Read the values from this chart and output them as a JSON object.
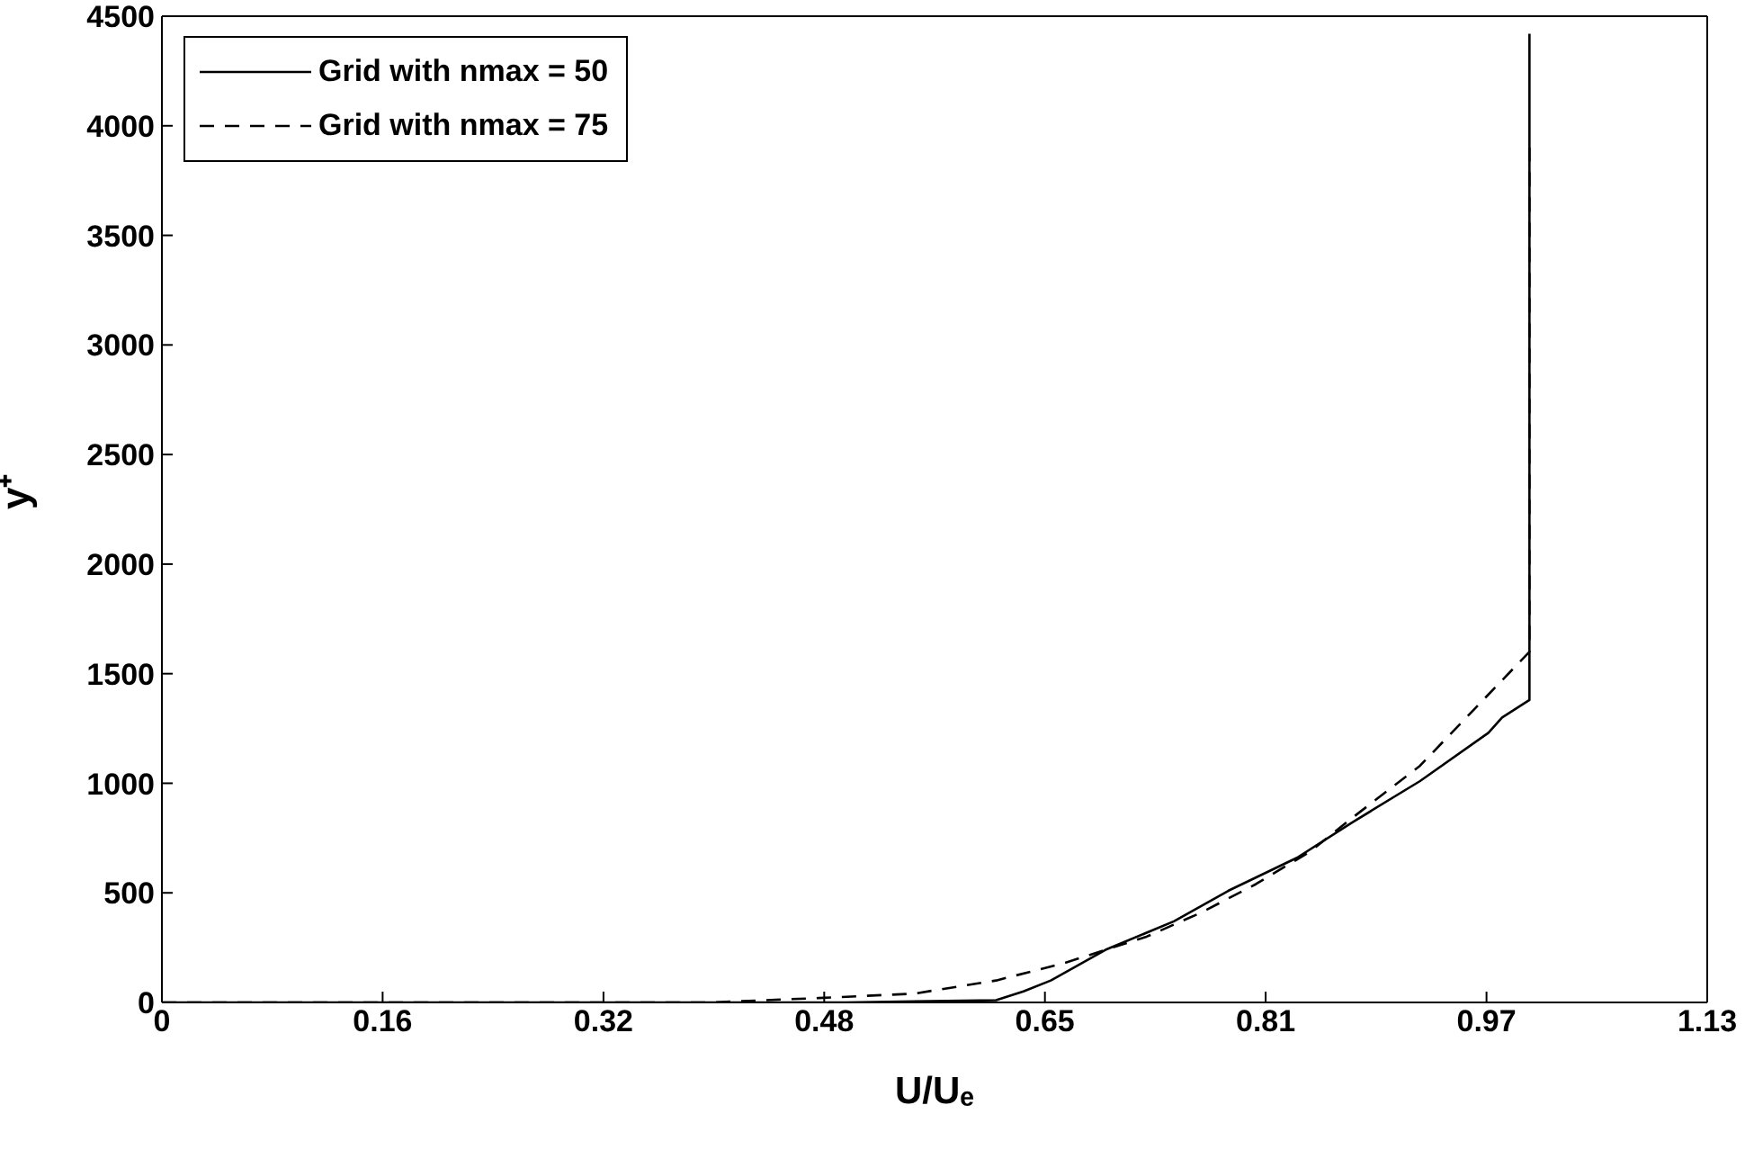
{
  "chart_data": {
    "type": "line",
    "xlabel": "U/Uₑ",
    "ylabel": "y⁺",
    "xlim": [
      0,
      1.13
    ],
    "ylim": [
      0,
      4500
    ],
    "xticks": [
      0,
      {
        "value": 0.1614,
        "label": "0.16"
      },
      {
        "value": 0.3229,
        "label": "0.32"
      },
      {
        "value": 0.4843,
        "label": "0.48"
      },
      {
        "value": 0.6457,
        "label": "0.65"
      },
      {
        "value": 0.8071,
        "label": "0.81"
      },
      {
        "value": 0.9686,
        "label": "0.97"
      },
      1.13
    ],
    "yticks": [
      0,
      500,
      1000,
      1500,
      2000,
      2500,
      3000,
      3500,
      4000,
      4500
    ],
    "legend": "top left",
    "marker": "none",
    "series": [
      {
        "name": "Grid with nmax = 50",
        "color": "#000000",
        "line_style": "solid",
        "x": [
          0,
          0.5,
          0.61,
          0.63,
          0.65,
          0.69,
          0.74,
          0.78,
          0.83,
          0.87,
          0.92,
          0.97,
          0.98,
          1.0,
          1.0
        ],
        "values": [
          0,
          0,
          10,
          50,
          100,
          240,
          370,
          510,
          660,
          820,
          1010,
          1230,
          1300,
          1380,
          4420
        ]
      },
      {
        "name": "Grid with nmax = 75",
        "color": "#000000",
        "line_style": "dashed",
        "x": [
          0,
          0.4,
          0.48,
          0.55,
          0.61,
          0.66,
          0.72,
          0.76,
          0.8,
          0.84,
          0.87,
          0.92,
          0.96,
          1.0,
          1.0
        ],
        "values": [
          0,
          0,
          20,
          40,
          100,
          180,
          300,
          410,
          540,
          690,
          840,
          1080,
          1340,
          1600,
          3900
        ]
      }
    ]
  }
}
